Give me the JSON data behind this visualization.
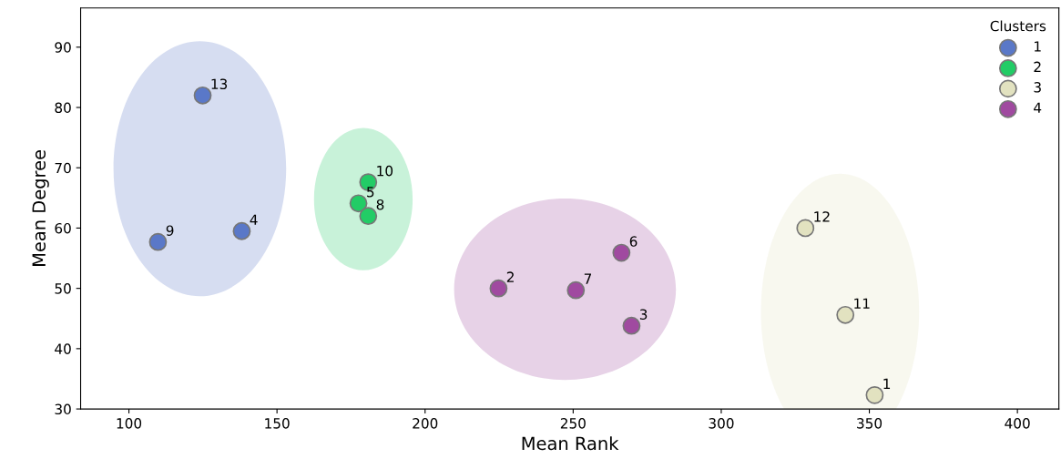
{
  "chart_data": {
    "type": "scatter",
    "xlabel": "Mean Rank",
    "ylabel": "Mean Degree",
    "legend_title": "Clusters",
    "legend": "top right",
    "marker": "circle",
    "grid": false,
    "xlim": [
      83.7,
      414
    ],
    "ylim": [
      30,
      96.5
    ],
    "xticks": [
      100,
      150,
      200,
      250,
      300,
      350,
      400
    ],
    "yticks": [
      30,
      40,
      50,
      60,
      70,
      80,
      90
    ],
    "series": [
      {
        "name": "1",
        "color": "#5a78c8",
        "x": [
          124.9,
          109.8,
          138.1
        ],
        "values": [
          82.0,
          57.7,
          59.5
        ]
      },
      {
        "name": "2",
        "color": "#22cc66",
        "x": [
          180.8,
          177.5,
          180.8
        ],
        "values": [
          67.6,
          64.1,
          62.0
        ]
      },
      {
        "name": "3",
        "color": "#e2e2c0",
        "x": [
          328.4,
          341.9,
          351.8
        ],
        "values": [
          60.0,
          45.6,
          32.3
        ]
      },
      {
        "name": "4",
        "color": "#a04aa0",
        "x": [
          224.8,
          250.9,
          266.3,
          269.7
        ],
        "values": [
          50.0,
          49.7,
          55.9,
          43.8
        ]
      }
    ],
    "annotations": [
      {
        "text": "13",
        "x": 124.9,
        "y": 82.0
      },
      {
        "text": "9",
        "x": 109.8,
        "y": 57.7
      },
      {
        "text": "4",
        "x": 138.1,
        "y": 59.5
      },
      {
        "text": "10",
        "x": 180.8,
        "y": 67.6
      },
      {
        "text": "5",
        "x": 177.5,
        "y": 64.1
      },
      {
        "text": "8",
        "x": 180.8,
        "y": 62.0
      },
      {
        "text": "12",
        "x": 328.4,
        "y": 60.0
      },
      {
        "text": "11",
        "x": 341.9,
        "y": 45.6
      },
      {
        "text": "1",
        "x": 351.8,
        "y": 32.3
      },
      {
        "text": "2",
        "x": 224.8,
        "y": 50.0
      },
      {
        "text": "7",
        "x": 250.9,
        "y": 49.7
      },
      {
        "text": "6",
        "x": 266.3,
        "y": 55.9
      },
      {
        "text": "3",
        "x": 269.7,
        "y": 43.8
      }
    ]
  }
}
